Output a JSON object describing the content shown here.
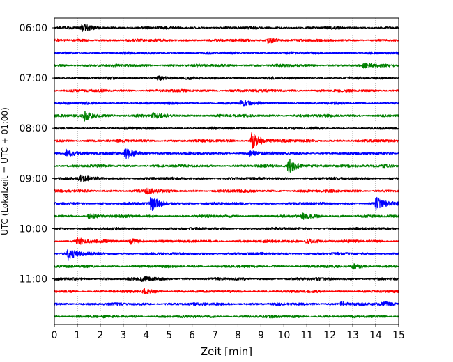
{
  "chart_data": {
    "type": "line",
    "subtype": "helicorder-seismogram",
    "title": "",
    "xlabel": "Zeit  [min]",
    "ylabel": "UTC (Lokalzeit = UTC + 01:00)",
    "xlim": [
      0,
      15
    ],
    "x_ticks": [
      "0",
      "1",
      "2",
      "3",
      "4",
      "5",
      "6",
      "7",
      "8",
      "9",
      "10",
      "11",
      "12",
      "13",
      "14",
      "15"
    ],
    "grid": "vertical dotted lines at each minute",
    "y_tick_labels": [
      "06:00",
      "07:00",
      "08:00",
      "09:00",
      "10:00",
      "11:00"
    ],
    "trace_colors": [
      "#000000",
      "#ff0000",
      "#0000ff",
      "#008000"
    ],
    "traces": [
      {
        "start": "06:00",
        "color": "#000000",
        "events": [
          {
            "minute": 1.2,
            "amplitude": 0.5
          }
        ]
      },
      {
        "start": "06:15",
        "color": "#ff0000",
        "events": [
          {
            "minute": 9.3,
            "amplitude": 0.45
          }
        ]
      },
      {
        "start": "06:30",
        "color": "#0000ff",
        "events": []
      },
      {
        "start": "06:45",
        "color": "#008000",
        "events": [
          {
            "minute": 13.5,
            "amplitude": 0.35
          }
        ]
      },
      {
        "start": "07:00",
        "color": "#000000",
        "events": [
          {
            "minute": 4.5,
            "amplitude": 0.3
          }
        ]
      },
      {
        "start": "07:15",
        "color": "#ff0000",
        "events": []
      },
      {
        "start": "07:30",
        "color": "#0000ff",
        "events": [
          {
            "minute": 8.1,
            "amplitude": 0.4
          }
        ]
      },
      {
        "start": "07:45",
        "color": "#008000",
        "events": [
          {
            "minute": 1.3,
            "amplitude": 0.8
          },
          {
            "minute": 4.3,
            "amplitude": 0.35
          }
        ]
      },
      {
        "start": "08:00",
        "color": "#000000",
        "events": []
      },
      {
        "start": "08:15",
        "color": "#ff0000",
        "events": [
          {
            "minute": 8.6,
            "amplitude": 1.3
          }
        ]
      },
      {
        "start": "08:30",
        "color": "#0000ff",
        "events": [
          {
            "minute": 0.5,
            "amplitude": 0.7
          },
          {
            "minute": 3.1,
            "amplitude": 0.9
          },
          {
            "minute": 8.5,
            "amplitude": 0.4
          }
        ]
      },
      {
        "start": "08:45",
        "color": "#008000",
        "events": [
          {
            "minute": 10.2,
            "amplitude": 1.1
          },
          {
            "minute": 14.3,
            "amplitude": 0.4
          }
        ]
      },
      {
        "start": "09:00",
        "color": "#000000",
        "events": [
          {
            "minute": 1.1,
            "amplitude": 0.5
          }
        ]
      },
      {
        "start": "09:15",
        "color": "#ff0000",
        "events": [
          {
            "minute": 4.0,
            "amplitude": 0.4
          }
        ]
      },
      {
        "start": "09:30",
        "color": "#0000ff",
        "events": [
          {
            "minute": 4.2,
            "amplitude": 1.1
          },
          {
            "minute": 14.0,
            "amplitude": 1.0
          }
        ]
      },
      {
        "start": "09:45",
        "color": "#008000",
        "events": [
          {
            "minute": 1.5,
            "amplitude": 0.4
          },
          {
            "minute": 10.8,
            "amplitude": 0.45
          }
        ]
      },
      {
        "start": "10:00",
        "color": "#000000",
        "events": []
      },
      {
        "start": "10:15",
        "color": "#ff0000",
        "events": [
          {
            "minute": 1.0,
            "amplitude": 0.5
          },
          {
            "minute": 3.3,
            "amplitude": 0.45
          },
          {
            "minute": 11.0,
            "amplitude": 0.4
          }
        ]
      },
      {
        "start": "10:30",
        "color": "#0000ff",
        "events": [
          {
            "minute": 0.6,
            "amplitude": 0.9
          }
        ]
      },
      {
        "start": "10:45",
        "color": "#008000",
        "events": [
          {
            "minute": 13.0,
            "amplitude": 0.35
          }
        ]
      },
      {
        "start": "11:00",
        "color": "#000000",
        "events": [
          {
            "minute": 3.8,
            "amplitude": 0.35
          }
        ]
      },
      {
        "start": "11:15",
        "color": "#ff0000",
        "events": [
          {
            "minute": 3.9,
            "amplitude": 0.3
          }
        ]
      },
      {
        "start": "11:30",
        "color": "#0000ff",
        "events": [
          {
            "minute": 12.5,
            "amplitude": 0.3
          },
          {
            "minute": 14.2,
            "amplitude": 0.3
          }
        ]
      },
      {
        "start": "11:45",
        "color": "#008000",
        "events": []
      }
    ]
  }
}
